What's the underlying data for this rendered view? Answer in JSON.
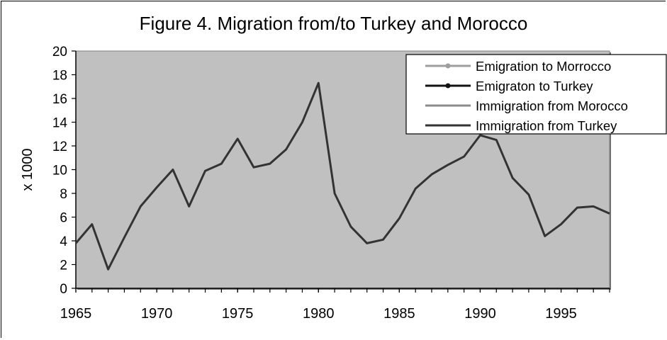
{
  "chart_data": {
    "type": "line",
    "title": "Figure 4. Migration from/to Turkey and Morocco",
    "ylabel": "x 1000",
    "xlabel": "",
    "xlim": [
      1965,
      1998
    ],
    "ylim": [
      0,
      20
    ],
    "x_ticks": [
      "1965",
      "1970",
      "1975",
      "1980",
      "1985",
      "1990",
      "1995"
    ],
    "y_ticks": [
      "0",
      "2",
      "4",
      "6",
      "8",
      "10",
      "12",
      "14",
      "16",
      "18",
      "20"
    ],
    "legend_position": "top-right",
    "series": [
      {
        "name": "Emigration to Morrocco",
        "color": "#9e9e9e",
        "marker": true,
        "x": [],
        "values": []
      },
      {
        "name": "Emigraton to Turkey",
        "color": "#111111",
        "marker": true,
        "x": [],
        "values": []
      },
      {
        "name": "Immigration from Morocco",
        "color": "#8a8a8a",
        "marker": false,
        "x": [],
        "values": []
      },
      {
        "name": "Immigration from Turkey",
        "color": "#333333",
        "marker": false,
        "x": [
          1965,
          1966,
          1967,
          1968,
          1969,
          1970,
          1971,
          1972,
          1973,
          1974,
          1975,
          1976,
          1977,
          1978,
          1979,
          1980,
          1981,
          1982,
          1983,
          1984,
          1985,
          1986,
          1987,
          1988,
          1989,
          1990,
          1991,
          1992,
          1993,
          1994,
          1995,
          1996,
          1997,
          1998
        ],
        "values": [
          3.8,
          5.4,
          1.6,
          4.3,
          6.9,
          8.5,
          10.0,
          6.9,
          9.9,
          10.5,
          12.6,
          10.2,
          10.5,
          11.7,
          14.0,
          17.3,
          8.0,
          5.2,
          3.8,
          4.1,
          5.9,
          8.4,
          9.6,
          10.4,
          11.1,
          12.9,
          12.5,
          9.3,
          7.9,
          4.4,
          5.4,
          6.8,
          6.9,
          6.3
        ]
      }
    ],
    "plot_background": "#c0c0c0"
  }
}
